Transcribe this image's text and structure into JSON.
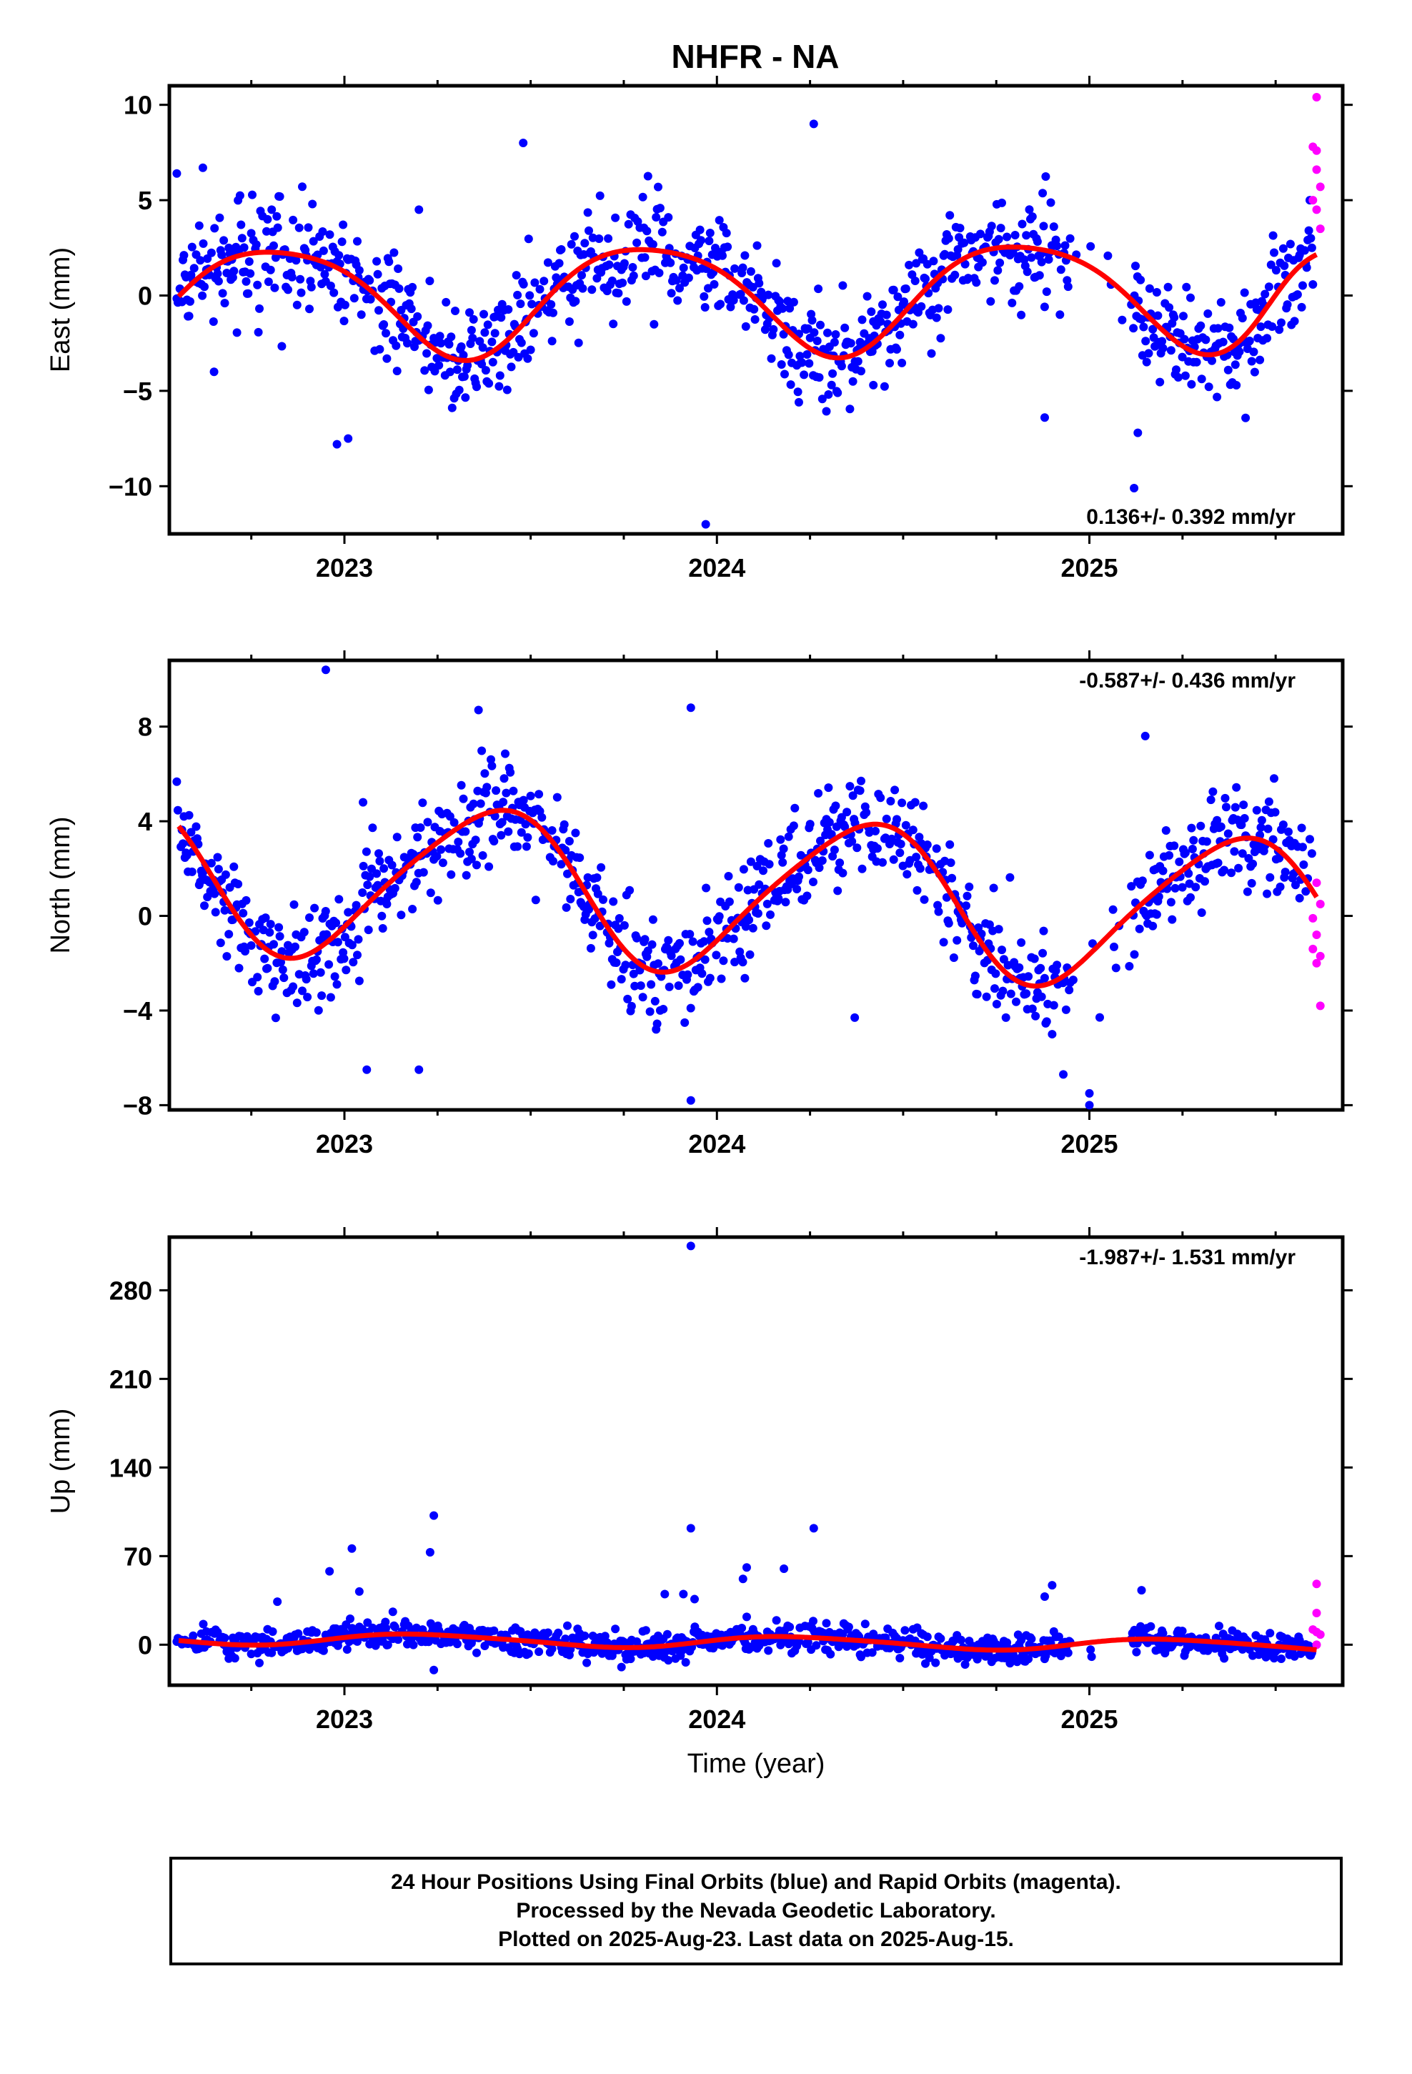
{
  "title": "NHFR - NA",
  "colors": {
    "final": "#0000ff",
    "rapid": "#ff00ff",
    "fit": "#ff0000"
  },
  "chart_data": [
    {
      "type": "scatter",
      "panel": "east",
      "ylabel": "East (mm)",
      "xlabel": "",
      "xlim": [
        2022.53,
        2025.68
      ],
      "ylim": [
        -12.5,
        11
      ],
      "xticks": [
        2023,
        2024,
        2025
      ],
      "xtick_labels": [
        "2023",
        "2024",
        "2025"
      ],
      "yticks": [
        10,
        5,
        0,
        -5,
        -10
      ],
      "ytick_labels": [
        "10",
        "5",
        "0",
        "−5",
        "−10"
      ],
      "rate": "0.136+/- 0.392 mm/yr",
      "rate_position": "bottom-right",
      "fit": {
        "mean": 0.0,
        "trend_mm_per_yr": 0.136,
        "annual": [
          1.2,
          -2.6
        ],
        "semiannual": [
          0.2,
          0.4
        ],
        "extra": [
          [
            2025.55,
            1.0
          ]
        ]
      },
      "noise": 1.4,
      "outliers": [
        [
          2022.55,
          6.4
        ],
        [
          2022.62,
          6.7
        ],
        [
          2022.65,
          -4.0
        ],
        [
          2022.98,
          -7.8
        ],
        [
          2023.01,
          -7.5
        ],
        [
          2023.2,
          4.5
        ],
        [
          2023.48,
          8.0
        ],
        [
          2023.97,
          -12.0
        ],
        [
          2024.26,
          9.0
        ],
        [
          2024.22,
          -5.6
        ],
        [
          2024.88,
          -6.4
        ],
        [
          2025.12,
          -10.1
        ],
        [
          2025.13,
          -7.2
        ],
        [
          2024.42,
          -4.7
        ]
      ],
      "rapid": [
        [
          2025.61,
          10.4
        ],
        [
          2025.6,
          7.8
        ],
        [
          2025.61,
          7.6
        ],
        [
          2025.61,
          6.6
        ],
        [
          2025.62,
          5.7
        ],
        [
          2025.6,
          5.0
        ],
        [
          2025.61,
          4.5
        ],
        [
          2025.62,
          3.5
        ]
      ]
    },
    {
      "type": "scatter",
      "panel": "north",
      "ylabel": "North (mm)",
      "xlabel": "",
      "xlim": [
        2022.53,
        2025.68
      ],
      "ylim": [
        -8.2,
        10.8
      ],
      "xticks": [
        2023,
        2024,
        2025
      ],
      "xtick_labels": [
        "2023",
        "2024",
        "2025"
      ],
      "yticks": [
        8,
        4,
        0,
        -4,
        -8
      ],
      "ytick_labels": [
        "8",
        "4",
        "0",
        "−4",
        "−8"
      ],
      "rate": "-0.587+/- 0.436 mm/yr",
      "rate_position": "top-right",
      "fit": {
        "mean": 0.9,
        "trend_mm_per_yr": -0.587,
        "annual": [
          -2.4,
          2.1
        ],
        "semiannual": [
          0.4,
          0.2
        ],
        "extra": []
      },
      "noise": 1.1,
      "outliers": [
        [
          2022.95,
          10.4
        ],
        [
          2023.36,
          8.7
        ],
        [
          2023.93,
          8.8
        ],
        [
          2025.15,
          7.6
        ],
        [
          2023.06,
          -6.5
        ],
        [
          2023.2,
          -6.5
        ],
        [
          2023.93,
          -7.8
        ],
        [
          2024.93,
          -6.7
        ],
        [
          2025.0,
          -7.5
        ],
        [
          2025.0,
          -8.0
        ],
        [
          2024.9,
          -5.0
        ],
        [
          2023.05,
          4.8
        ],
        [
          2024.37,
          -4.3
        ]
      ],
      "rapid": [
        [
          2025.61,
          1.4
        ],
        [
          2025.62,
          0.5
        ],
        [
          2025.6,
          -0.1
        ],
        [
          2025.61,
          -0.8
        ],
        [
          2025.6,
          -1.4
        ],
        [
          2025.62,
          -1.7
        ],
        [
          2025.61,
          -2.0
        ],
        [
          2025.62,
          -3.8
        ]
      ]
    },
    {
      "type": "scatter",
      "panel": "up",
      "ylabel": "Up (mm)",
      "xlabel": "Time (year)",
      "xlim": [
        2022.53,
        2025.68
      ],
      "ylim": [
        -32,
        322
      ],
      "xticks": [
        2023,
        2024,
        2025
      ],
      "xtick_labels": [
        "2023",
        "2024",
        "2025"
      ],
      "yticks": [
        280,
        210,
        140,
        70,
        0
      ],
      "ytick_labels": [
        "280",
        "210",
        "140",
        "70",
        "0"
      ],
      "rate": "-1.987+/- 1.531 mm/yr",
      "rate_position": "top-right",
      "fit": {
        "mean": 2.0,
        "trend_mm_per_yr": -1.987,
        "annual": [
          1.0,
          4.5
        ],
        "semiannual": [
          0.5,
          0.5
        ],
        "extra": []
      },
      "noise": 5.0,
      "outliers": [
        [
          2023.93,
          315
        ],
        [
          2023.24,
          102
        ],
        [
          2023.23,
          73
        ],
        [
          2023.02,
          76
        ],
        [
          2022.96,
          58
        ],
        [
          2023.04,
          42
        ],
        [
          2022.82,
          34
        ],
        [
          2023.13,
          26
        ],
        [
          2023.11,
          18
        ],
        [
          2023.93,
          92
        ],
        [
          2024.26,
          92
        ],
        [
          2024.08,
          61
        ],
        [
          2024.18,
          60
        ],
        [
          2024.07,
          52
        ],
        [
          2023.86,
          40
        ],
        [
          2023.91,
          40
        ],
        [
          2023.94,
          36
        ],
        [
          2024.9,
          47
        ],
        [
          2024.88,
          38
        ],
        [
          2025.14,
          43
        ],
        [
          2024.08,
          22
        ],
        [
          2023.24,
          -20
        ]
      ],
      "rapid": [
        [
          2025.61,
          48
        ],
        [
          2025.61,
          25
        ],
        [
          2025.6,
          12
        ],
        [
          2025.61,
          10
        ],
        [
          2025.62,
          8
        ],
        [
          2025.61,
          0
        ]
      ]
    }
  ],
  "caption": {
    "line1": "24 Hour Positions Using Final Orbits (blue) and Rapid Orbits (magenta).",
    "line2": "Processed by the Nevada Geodetic Laboratory.",
    "line3": "Plotted on 2025-Aug-23. Last data on 2025-Aug-15."
  }
}
